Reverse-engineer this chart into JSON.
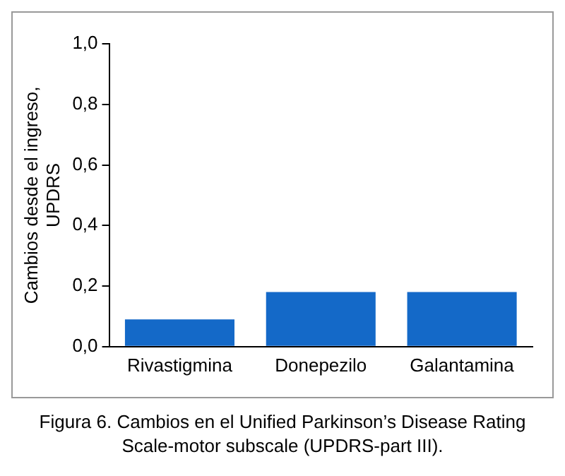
{
  "chart_data": {
    "type": "bar",
    "ylabel": "Cambios desde el ingreso, UPDRS",
    "categories": [
      "Rivastigmina",
      "Donepezilo",
      "Galantamina"
    ],
    "values": [
      0.09,
      0.18,
      0.18
    ],
    "color": "#1469c8",
    "ylim": [
      0,
      1
    ],
    "yticks": [
      {
        "value": 0,
        "label": "0,0"
      },
      {
        "value": 0.2,
        "label": "0,2"
      },
      {
        "value": 0.4,
        "label": "0,4"
      },
      {
        "value": 0.6,
        "label": "0,6"
      },
      {
        "value": 0.8,
        "label": "0,8"
      },
      {
        "value": 1,
        "label": "1,0"
      }
    ],
    "grid": false,
    "legend": false,
    "annotations": [
      "Figura 6. Cambios en el Unified Parkinson’s Disease Rating Scale-motor subscale (UPDRS-part III)."
    ]
  }
}
